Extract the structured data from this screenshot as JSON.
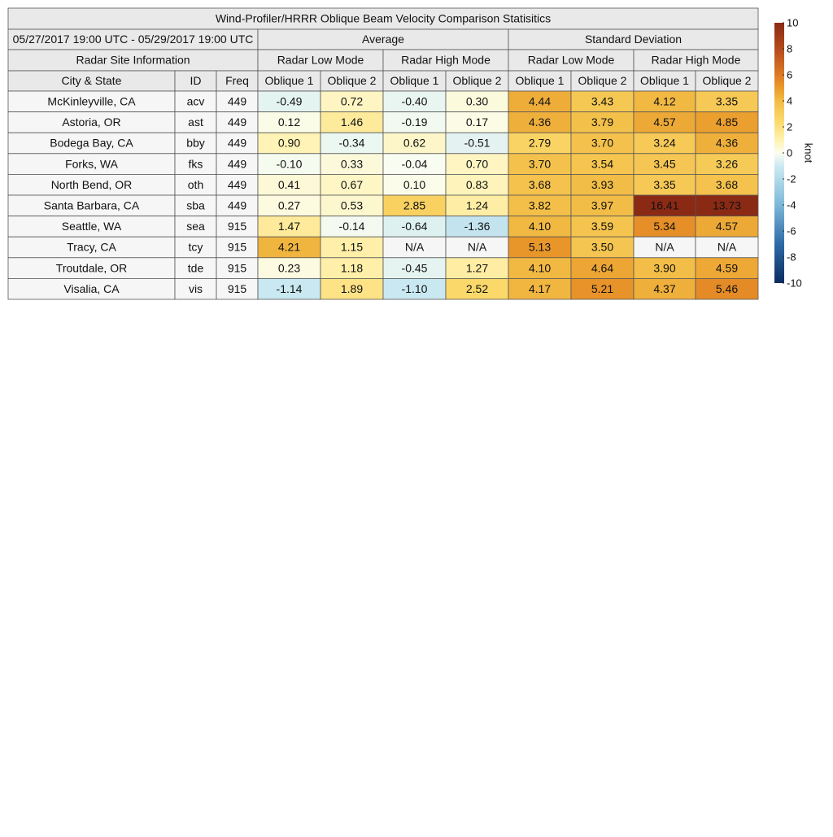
{
  "title": "Wind-Profiler/HRRR Oblique Beam Velocity Comparison Statisitics",
  "date_range": "05/27/2017 19:00 UTC - 05/29/2017 19:00 UTC",
  "groups": [
    "Average",
    "Standard Deviation"
  ],
  "site_info": "Radar Site Information",
  "modes": [
    "Radar Low Mode",
    "Radar High Mode",
    "Radar Low Mode",
    "Radar High Mode"
  ],
  "columns": [
    "City & State",
    "ID",
    "Freq",
    "Oblique 1",
    "Oblique 2",
    "Oblique 1",
    "Oblique 2",
    "Oblique 1",
    "Oblique 2",
    "Oblique 1",
    "Oblique 2"
  ],
  "rows": [
    [
      "McKinleyville, CA",
      "acv",
      "449",
      "-0.49",
      "0.72",
      "-0.40",
      "0.30",
      "4.44",
      "3.43",
      "4.12",
      "3.35"
    ],
    [
      "Astoria, OR",
      "ast",
      "449",
      "0.12",
      "1.46",
      "-0.19",
      "0.17",
      "4.36",
      "3.79",
      "4.57",
      "4.85"
    ],
    [
      "Bodega Bay, CA",
      "bby",
      "449",
      "0.90",
      "-0.34",
      "0.62",
      "-0.51",
      "2.79",
      "3.70",
      "3.24",
      "4.36"
    ],
    [
      "Forks, WA",
      "fks",
      "449",
      "-0.10",
      "0.33",
      "-0.04",
      "0.70",
      "3.70",
      "3.54",
      "3.45",
      "3.26"
    ],
    [
      "North Bend, OR",
      "oth",
      "449",
      "0.41",
      "0.67",
      "0.10",
      "0.83",
      "3.68",
      "3.93",
      "3.35",
      "3.68"
    ],
    [
      "Santa Barbara, CA",
      "sba",
      "449",
      "0.27",
      "0.53",
      "2.85",
      "1.24",
      "3.82",
      "3.97",
      "16.41",
      "13.73"
    ],
    [
      "Seattle, WA",
      "sea",
      "915",
      "1.47",
      "-0.14",
      "-0.64",
      "-1.36",
      "4.10",
      "3.59",
      "5.34",
      "4.57"
    ],
    [
      "Tracy, CA",
      "tcy",
      "915",
      "4.21",
      "1.15",
      "N/A",
      "N/A",
      "5.13",
      "3.50",
      "N/A",
      "N/A"
    ],
    [
      "Troutdale, OR",
      "tde",
      "915",
      "0.23",
      "1.18",
      "-0.45",
      "1.27",
      "4.10",
      "4.64",
      "3.90",
      "4.59"
    ],
    [
      "Visalia, CA",
      "vis",
      "915",
      "-1.14",
      "1.89",
      "-1.10",
      "2.52",
      "4.17",
      "5.21",
      "4.37",
      "5.46"
    ]
  ],
  "colorbar": {
    "label": "knot",
    "lim": [
      -10,
      10
    ],
    "ticks": [
      10,
      8,
      6,
      4,
      2,
      0,
      -2,
      -4,
      -6,
      -8,
      -10
    ]
  }
}
